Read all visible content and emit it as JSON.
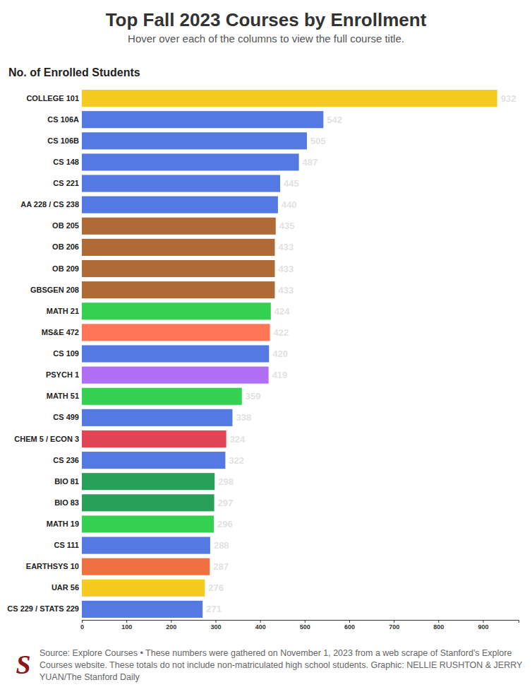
{
  "chart_data": {
    "type": "bar",
    "orientation": "horizontal",
    "title": "Top Fall 2023 Courses by Enrollment",
    "subtitle": "Hover over each of the columns to view the full course title.",
    "x_label": "No. of Enrolled Students",
    "source": "Source: Explore Courses • These numbers were gathered on November 1, 2023 from a web scrape of Stanford's Explore Courses website. These totals do not include non-matriculated high school students. Graphic: NELLIE RUSHTON & JERRY YUAN/The Stanford Daily",
    "logo": "S",
    "categories": [
      "COLLEGE 101",
      "CS 106A",
      "CS 106B",
      "CS 148",
      "CS 221",
      "AA 228 / CS 238",
      "OB 205",
      "OB 206",
      "OB 209",
      "GBSGEN 208",
      "MATH 21",
      "MS&E 472",
      "CS 109",
      "PSYCH 1",
      "MATH 51",
      "CS 499",
      "CHEM 5 / ECON 3",
      "CS 236",
      "BIO 81",
      "BIO 83",
      "MATH 19",
      "CS 111",
      "EARTHSYS 10",
      "UAR 56",
      "CS 229 / STATS 229"
    ],
    "values": [
      932,
      542,
      505,
      487,
      445,
      440,
      435,
      433,
      433,
      433,
      424,
      422,
      420,
      419,
      359,
      338,
      324,
      322,
      298,
      297,
      296,
      288,
      287,
      276,
      271
    ],
    "colors": [
      "#f5cb1f",
      "#5579e3",
      "#5579e3",
      "#5579e3",
      "#5579e3",
      "#5579e3",
      "#b06a35",
      "#b06a35",
      "#b06a35",
      "#b06a35",
      "#34d150",
      "#ff7555",
      "#5579e3",
      "#b06ef5",
      "#34d150",
      "#5579e3",
      "#e04455",
      "#5579e3",
      "#28a05a",
      "#28a05a",
      "#34d150",
      "#5579e3",
      "#ef7040",
      "#f5cb1f",
      "#5579e3"
    ],
    "xlim": [
      0,
      980
    ],
    "xticks": [
      0,
      100,
      200,
      300,
      400,
      500,
      600,
      700,
      800,
      900
    ],
    "data_labels": true,
    "grid": false
  }
}
